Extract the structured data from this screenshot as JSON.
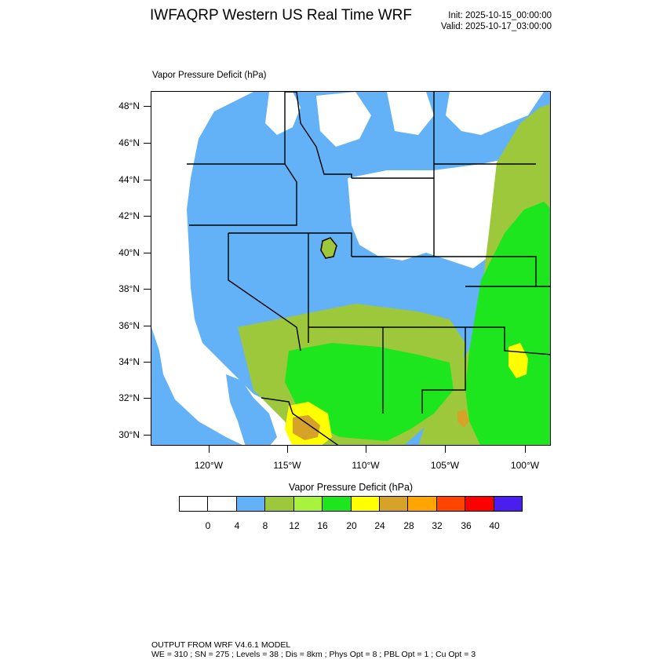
{
  "header": {
    "title": "IWFAQRP Western US Real Time WRF",
    "init": "Init: 2025-10-15_00:00:00",
    "valid": "Valid: 2025-10-17_03:00:00"
  },
  "map": {
    "subtitle": "Vapor Pressure Deficit   (hPa)",
    "lat_labels": [
      "48°N",
      "46°N",
      "44°N",
      "42°N",
      "40°N",
      "38°N",
      "36°N",
      "34°N",
      "32°N",
      "30°N"
    ],
    "lon_labels": [
      "120°W",
      "115°W",
      "110°W",
      "105°W",
      "100°W"
    ],
    "colors": {
      "white": "#ffffff",
      "blue": "#63b2f8",
      "olive": "#9ec83c",
      "lightgreen": "#a8f43c",
      "green": "#1ee61e",
      "yellow": "#ffff00",
      "tan": "#d7a228",
      "orange": "#ffa500",
      "redorange": "#ff4500",
      "red": "#ff0000",
      "violet": "#4b1ef0"
    }
  },
  "legend": {
    "title": "Vapor Pressure Deficit  (hPa)",
    "swatches": [
      "#ffffff",
      "#ffffff",
      "#63b2f8",
      "#9ec83c",
      "#a8f43c",
      "#1ee61e",
      "#ffff00",
      "#d7a228",
      "#ffa500",
      "#ff4500",
      "#ff0000",
      "#4b1ef0"
    ],
    "labels": [
      "0",
      "4",
      "8",
      "12",
      "16",
      "20",
      "24",
      "28",
      "32",
      "36",
      "40"
    ]
  },
  "footer": {
    "line1": "OUTPUT FROM WRF V4.6.1 MODEL",
    "line2": "WE = 310 ; SN = 275 ; Levels = 38 ; Dis = 8km ; Phys Opt = 8 ; PBL Opt = 1 ; Cu Opt = 3"
  }
}
